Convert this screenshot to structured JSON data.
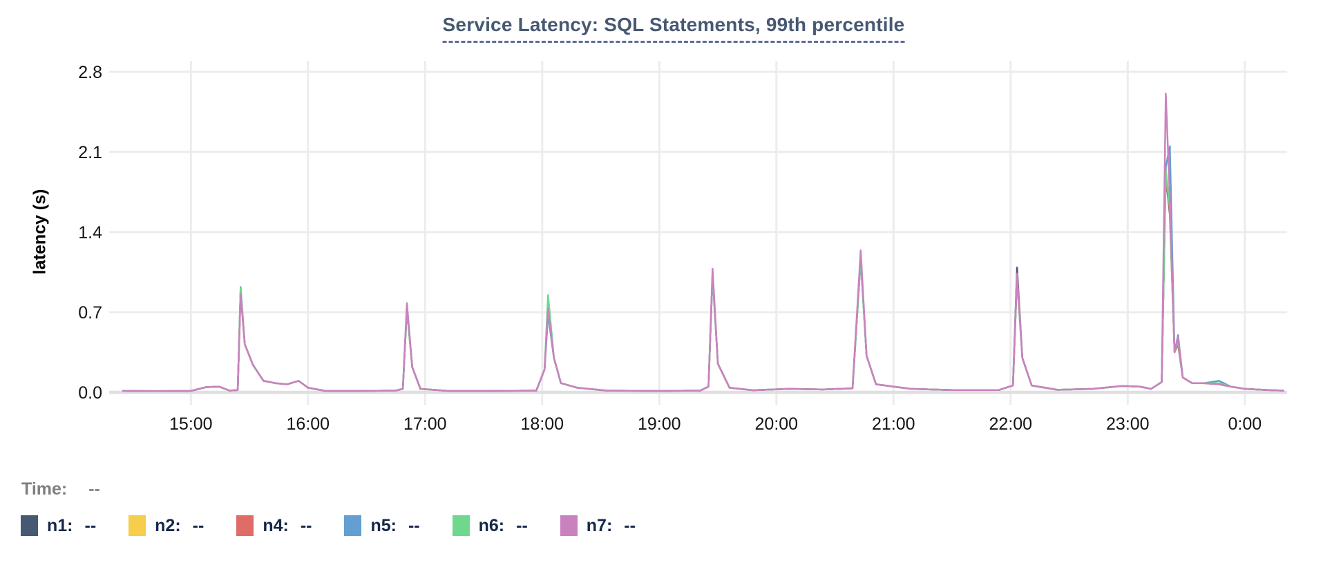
{
  "title": "Service Latency: SQL Statements, 99th percentile",
  "y_axis_label": "latency (s)",
  "time": {
    "label": "Time:",
    "value": "--"
  },
  "legend": {
    "items": [
      {
        "name": "n1",
        "value": "--",
        "color": "#475872"
      },
      {
        "name": "n2",
        "value": "--",
        "color": "#F6CE4B"
      },
      {
        "name": "n4",
        "value": "--",
        "color": "#E06C67"
      },
      {
        "name": "n5",
        "value": "--",
        "color": "#639FD0"
      },
      {
        "name": "n6",
        "value": "--",
        "color": "#70D78F"
      },
      {
        "name": "n7",
        "value": "--",
        "color": "#CA82BE"
      }
    ]
  },
  "colors": {
    "grid": "#ececec",
    "zero_line": "#e0e0e0",
    "title": "#475872",
    "title_underline": "#5a6b96",
    "axis_text": "#141414",
    "legend_text": "#152849",
    "time_text": "#7f7f7f"
  },
  "chart_data": {
    "type": "line",
    "title": "Service Latency: SQL Statements, 99th percentile",
    "xlabel": "",
    "ylabel": "latency (s)",
    "grid": true,
    "legend_position": "bottom",
    "ylim": [
      0,
      2.8
    ],
    "y_ticks": [
      0.0,
      0.7,
      1.4,
      2.1,
      2.8
    ],
    "y_tick_labels": [
      "0.0",
      "0.7",
      "1.4",
      "2.1",
      "2.8"
    ],
    "x_unit": "decimal hours, 24.x = past midnight",
    "xlim": [
      14.42,
      24.33
    ],
    "x_ticks": [
      {
        "hour": 15,
        "label": "15:00"
      },
      {
        "hour": 16,
        "label": "16:00"
      },
      {
        "hour": 17,
        "label": "17:00"
      },
      {
        "hour": 18,
        "label": "18:00"
      },
      {
        "hour": 19,
        "label": "19:00"
      },
      {
        "hour": 20,
        "label": "20:00"
      },
      {
        "hour": 21,
        "label": "21:00"
      },
      {
        "hour": 22,
        "label": "22:00"
      },
      {
        "hour": 23,
        "label": "23:00"
      },
      {
        "hour": 24,
        "label": "0:00"
      }
    ],
    "x": [
      14.42,
      14.7,
      15.0,
      15.13,
      15.24,
      15.33,
      15.4,
      15.425,
      15.46,
      15.53,
      15.62,
      15.72,
      15.82,
      15.92,
      16.0,
      16.15,
      16.45,
      16.75,
      16.81,
      16.845,
      16.89,
      16.96,
      17.2,
      17.6,
      17.95,
      18.02,
      18.05,
      18.1,
      18.16,
      18.3,
      18.55,
      19.0,
      19.35,
      19.42,
      19.455,
      19.5,
      19.6,
      19.8,
      20.1,
      20.4,
      20.65,
      20.72,
      20.77,
      20.85,
      21.0,
      21.15,
      21.5,
      21.9,
      22.02,
      22.055,
      22.1,
      22.18,
      22.4,
      22.7,
      22.95,
      23.1,
      23.2,
      23.29,
      23.325,
      23.36,
      23.4,
      23.43,
      23.47,
      23.55,
      23.65,
      23.78,
      23.88,
      24.0,
      24.2,
      24.33
    ],
    "series": [
      {
        "name": "n1",
        "color": "#475872",
        "values": [
          0.012,
          0.01,
          0.012,
          0.045,
          0.05,
          0.015,
          0.02,
          0.88,
          0.42,
          0.24,
          0.1,
          0.08,
          0.07,
          0.1,
          0.04,
          0.012,
          0.012,
          0.015,
          0.03,
          0.73,
          0.22,
          0.03,
          0.012,
          0.012,
          0.015,
          0.2,
          0.7,
          0.3,
          0.08,
          0.04,
          0.015,
          0.012,
          0.015,
          0.05,
          1.02,
          0.25,
          0.04,
          0.018,
          0.03,
          0.025,
          0.035,
          1.16,
          0.32,
          0.07,
          0.05,
          0.03,
          0.02,
          0.02,
          0.06,
          1.09,
          0.3,
          0.06,
          0.022,
          0.03,
          0.055,
          0.05,
          0.03,
          0.09,
          1.9,
          1.55,
          0.35,
          0.42,
          0.13,
          0.08,
          0.08,
          0.07,
          0.05,
          0.03,
          0.02,
          0.015
        ]
      },
      {
        "name": "n2",
        "color": "#F6CE4B",
        "values": [
          0.012,
          0.01,
          0.012,
          0.045,
          0.05,
          0.015,
          0.02,
          0.9,
          0.42,
          0.24,
          0.1,
          0.08,
          0.07,
          0.1,
          0.04,
          0.012,
          0.012,
          0.015,
          0.03,
          0.74,
          0.22,
          0.03,
          0.012,
          0.012,
          0.015,
          0.2,
          0.72,
          0.3,
          0.08,
          0.04,
          0.015,
          0.012,
          0.015,
          0.05,
          1.04,
          0.25,
          0.04,
          0.018,
          0.03,
          0.025,
          0.035,
          1.18,
          0.32,
          0.07,
          0.05,
          0.03,
          0.02,
          0.02,
          0.06,
          1.0,
          0.3,
          0.06,
          0.022,
          0.03,
          0.055,
          0.05,
          0.03,
          0.09,
          1.95,
          1.6,
          0.35,
          0.44,
          0.13,
          0.08,
          0.08,
          0.07,
          0.05,
          0.03,
          0.02,
          0.015
        ]
      },
      {
        "name": "n4",
        "color": "#E06C67",
        "values": [
          0.012,
          0.01,
          0.012,
          0.045,
          0.05,
          0.015,
          0.02,
          0.87,
          0.42,
          0.24,
          0.1,
          0.08,
          0.07,
          0.1,
          0.04,
          0.012,
          0.012,
          0.015,
          0.03,
          0.75,
          0.22,
          0.03,
          0.012,
          0.012,
          0.015,
          0.2,
          0.7,
          0.3,
          0.08,
          0.04,
          0.015,
          0.012,
          0.015,
          0.05,
          1.05,
          0.25,
          0.04,
          0.018,
          0.03,
          0.025,
          0.035,
          1.19,
          0.32,
          0.07,
          0.05,
          0.03,
          0.02,
          0.02,
          0.06,
          1.04,
          0.3,
          0.06,
          0.022,
          0.03,
          0.055,
          0.05,
          0.03,
          0.09,
          1.92,
          1.58,
          0.35,
          0.42,
          0.13,
          0.08,
          0.08,
          0.07,
          0.05,
          0.03,
          0.02,
          0.015
        ]
      },
      {
        "name": "n5",
        "color": "#639FD0",
        "values": [
          0.012,
          0.01,
          0.012,
          0.045,
          0.05,
          0.015,
          0.02,
          0.92,
          0.42,
          0.24,
          0.1,
          0.08,
          0.07,
          0.1,
          0.04,
          0.012,
          0.012,
          0.015,
          0.03,
          0.74,
          0.22,
          0.03,
          0.012,
          0.012,
          0.015,
          0.2,
          0.68,
          0.3,
          0.08,
          0.04,
          0.015,
          0.012,
          0.015,
          0.05,
          1.03,
          0.25,
          0.04,
          0.018,
          0.03,
          0.025,
          0.035,
          1.17,
          0.32,
          0.07,
          0.05,
          0.03,
          0.02,
          0.02,
          0.06,
          1.01,
          0.3,
          0.06,
          0.022,
          0.03,
          0.055,
          0.05,
          0.03,
          0.09,
          1.97,
          2.15,
          0.35,
          0.5,
          0.13,
          0.08,
          0.08,
          0.1,
          0.05,
          0.03,
          0.02,
          0.015
        ]
      },
      {
        "name": "n6",
        "color": "#70D78F",
        "values": [
          0.012,
          0.01,
          0.012,
          0.045,
          0.05,
          0.015,
          0.02,
          0.91,
          0.42,
          0.24,
          0.1,
          0.08,
          0.07,
          0.1,
          0.04,
          0.012,
          0.012,
          0.015,
          0.03,
          0.76,
          0.22,
          0.03,
          0.012,
          0.012,
          0.015,
          0.2,
          0.85,
          0.3,
          0.08,
          0.04,
          0.015,
          0.012,
          0.015,
          0.05,
          1.04,
          0.25,
          0.04,
          0.018,
          0.03,
          0.025,
          0.035,
          1.18,
          0.32,
          0.07,
          0.05,
          0.03,
          0.02,
          0.02,
          0.06,
          1.0,
          0.3,
          0.06,
          0.022,
          0.03,
          0.055,
          0.05,
          0.03,
          0.09,
          1.93,
          1.62,
          0.35,
          0.45,
          0.13,
          0.08,
          0.08,
          0.08,
          0.05,
          0.03,
          0.02,
          0.015
        ]
      },
      {
        "name": "n7",
        "color": "#CA82BE",
        "values": [
          0.012,
          0.01,
          0.012,
          0.045,
          0.05,
          0.015,
          0.02,
          0.86,
          0.42,
          0.24,
          0.1,
          0.08,
          0.07,
          0.1,
          0.04,
          0.012,
          0.012,
          0.015,
          0.03,
          0.78,
          0.22,
          0.03,
          0.012,
          0.012,
          0.015,
          0.2,
          0.73,
          0.3,
          0.08,
          0.04,
          0.015,
          0.012,
          0.015,
          0.05,
          1.08,
          0.25,
          0.04,
          0.018,
          0.03,
          0.025,
          0.035,
          1.24,
          0.32,
          0.07,
          0.05,
          0.03,
          0.02,
          0.02,
          0.06,
          1.03,
          0.3,
          0.06,
          0.022,
          0.03,
          0.055,
          0.05,
          0.03,
          0.09,
          2.61,
          1.7,
          0.35,
          0.48,
          0.13,
          0.08,
          0.08,
          0.07,
          0.05,
          0.03,
          0.02,
          0.015
        ]
      }
    ]
  }
}
